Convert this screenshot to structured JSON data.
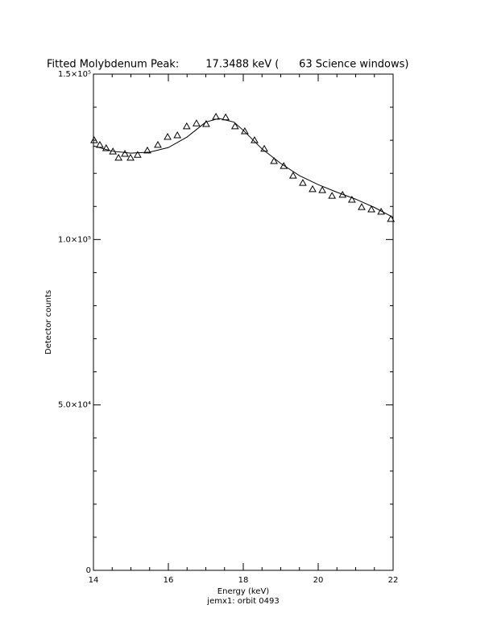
{
  "chart_data": {
    "type": "scatter",
    "title": "Fitted Molybdenum Peak:        17.3488 keV (      63 Science windows)",
    "xlabel": "Energy (keV)",
    "subtitle": "jemx1: orbit 0493",
    "ylabel": "Detector counts",
    "xlim": [
      14,
      22
    ],
    "ylim": [
      0,
      150000
    ],
    "xticks": [
      14,
      16,
      18,
      20,
      22
    ],
    "yticks": [
      0,
      {
        "value": 50000,
        "label": "5.0×10⁴"
      },
      {
        "value": 100000,
        "label": "1.0×10⁵"
      },
      {
        "value": 150000,
        "label": "1.5×10⁵"
      }
    ],
    "xminorticks": [
      14.5,
      15,
      15.5,
      16.5,
      17,
      17.5,
      18.5,
      19,
      19.5,
      20.5,
      21,
      21.5
    ],
    "yminorticks": [
      10000,
      20000,
      30000,
      40000,
      60000,
      70000,
      80000,
      90000,
      110000,
      120000,
      130000,
      140000
    ],
    "color": "#000000",
    "series": [
      {
        "marker": "triangle",
        "x": [
          14.02,
          14.17,
          14.34,
          14.52,
          14.67,
          14.84,
          14.99,
          15.18,
          15.44,
          15.72,
          15.98,
          16.24,
          16.49,
          16.75,
          17.01,
          17.27,
          17.53,
          17.78,
          18.04,
          18.3,
          18.56,
          18.82,
          19.08,
          19.33,
          19.59,
          19.85,
          20.11,
          20.37,
          20.65,
          20.9,
          21.16,
          21.42,
          21.68,
          21.94
        ],
        "values": [
          130000,
          128600,
          127600,
          126600,
          124700,
          125900,
          124700,
          125600,
          126900,
          128600,
          131000,
          131500,
          134200,
          135100,
          134900,
          137100,
          136900,
          134200,
          132700,
          130000,
          127400,
          123700,
          122200,
          119300,
          117100,
          115200,
          114900,
          113200,
          113500,
          112000,
          109800,
          109100,
          108400,
          106200
        ]
      },
      {
        "marker": "line",
        "x": [
          14,
          14.5,
          15,
          15.5,
          16,
          16.5,
          17,
          17.35,
          17.75,
          18,
          18.5,
          19,
          19.5,
          20,
          20.5,
          21,
          21.5,
          22
        ],
        "values": [
          128300,
          126700,
          126100,
          126400,
          127800,
          131000,
          135500,
          136600,
          135500,
          133000,
          127400,
          123000,
          119300,
          116600,
          114300,
          112200,
          109700,
          106700
        ]
      }
    ]
  }
}
